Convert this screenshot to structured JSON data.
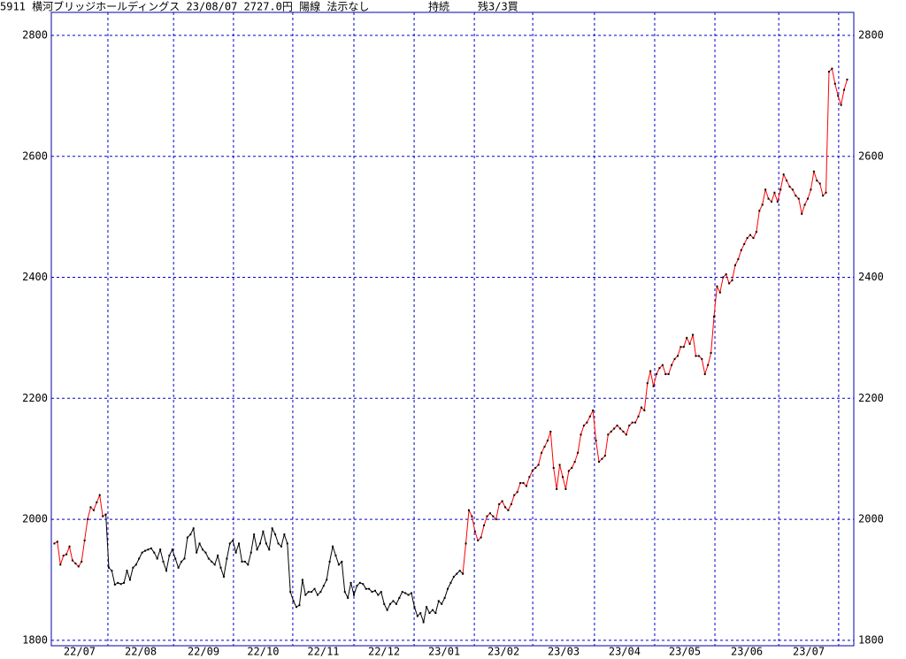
{
  "chart_data": {
    "type": "line",
    "title_parts": [
      "5911 横河ブリッジホールディングス 23/08/07 2727.0円 陽線 法示なし",
      "持続",
      "残3/3買"
    ],
    "x_labels": [
      "22/07",
      "22/08",
      "22/09",
      "22/10",
      "22/11",
      "22/12",
      "23/01",
      "23/02",
      "23/03",
      "23/04",
      "23/05",
      "23/06",
      "23/07"
    ],
    "xlim": [
      -1,
      264.2
    ],
    "xticks": [
      17.7,
      39.4,
      59.2,
      78.8,
      99,
      118.9,
      138.8,
      158.1,
      178.5,
      198.4,
      218.3,
      239.4,
      259.2
    ],
    "ylim": [
      1791,
      2838
    ],
    "yticks": [
      1800,
      2000,
      2200,
      2400,
      2600,
      2800
    ],
    "grid": true,
    "grid_color": "#0000cc",
    "frame_color": "#0000aa",
    "marker_color": "#000000",
    "series": [
      {
        "color": "#000000",
        "values": [
          null,
          null,
          null,
          null,
          null,
          null,
          null,
          null,
          null,
          null,
          null,
          null,
          null,
          null,
          null,
          null,
          null,
          2008,
          1920,
          1915,
          1892,
          1895,
          1893,
          1895,
          1915,
          1900,
          1920,
          1925,
          1935,
          1945,
          1948,
          1950,
          1952,
          1945,
          1935,
          1950,
          1930,
          1915,
          1940,
          1950,
          1935,
          1920,
          1930,
          1935,
          1970,
          1975,
          1985,
          1945,
          1960,
          1950,
          1945,
          1935,
          1930,
          1925,
          1940,
          1920,
          1905,
          1935,
          1960,
          1965,
          1945,
          1960,
          1930,
          1930,
          1925,
          1945,
          1975,
          1950,
          1960,
          1980,
          1960,
          1950,
          1985,
          1975,
          1960,
          1955,
          1975,
          1960,
          1880,
          1865,
          1855,
          1858,
          1900,
          1875,
          1880,
          1880,
          1885,
          1875,
          1880,
          1890,
          1900,
          1930,
          1955,
          1940,
          1925,
          1930,
          1880,
          1870,
          1895,
          1875,
          1890,
          1895,
          1893,
          1885,
          1885,
          1880,
          1882,
          1875,
          1880,
          1860,
          1850,
          1860,
          1865,
          1860,
          1870,
          1880,
          1878,
          1875,
          1878,
          1855,
          1840,
          1845,
          1830,
          1855,
          1845,
          1850,
          1845,
          1865,
          1860,
          1870,
          1885,
          1895,
          1905,
          1910,
          1915,
          1910,
          null,
          null,
          null,
          null,
          null,
          null,
          null,
          null,
          null,
          null,
          null,
          null,
          null,
          null,
          null,
          null,
          null,
          null,
          null,
          null,
          null,
          null,
          null,
          null,
          null,
          null,
          null,
          null,
          null,
          null,
          null,
          null,
          null,
          null,
          null,
          null,
          null,
          null,
          null,
          null,
          null,
          null,
          null,
          null,
          null,
          null,
          null,
          null,
          null,
          null,
          null,
          null,
          null,
          null,
          null,
          null,
          null,
          null,
          null,
          null,
          null,
          null,
          null,
          null,
          null,
          null,
          null,
          null,
          null,
          null,
          null,
          null,
          null,
          null,
          null,
          null,
          null,
          null,
          null,
          null,
          null,
          null,
          null,
          null,
          null,
          null,
          null,
          null,
          null,
          null,
          null,
          null,
          null,
          null,
          null,
          null,
          null,
          null,
          null,
          null,
          null,
          null,
          null,
          null,
          null,
          null,
          null,
          null,
          null,
          null,
          null,
          null,
          null,
          null,
          null,
          null,
          null,
          null,
          null,
          null,
          null,
          null,
          null,
          null,
          null,
          null,
          null
        ]
      },
      {
        "color": "#ff0000",
        "values": [
          1960,
          1963,
          1925,
          1940,
          1942,
          1955,
          1932,
          1927,
          1922,
          1930,
          1965,
          2000,
          2020,
          2015,
          2028,
          2040,
          2005,
          2008,
          null,
          null,
          null,
          null,
          null,
          null,
          null,
          null,
          null,
          null,
          null,
          null,
          null,
          null,
          null,
          null,
          null,
          null,
          null,
          null,
          null,
          null,
          null,
          null,
          null,
          null,
          null,
          null,
          null,
          null,
          null,
          null,
          null,
          null,
          null,
          null,
          null,
          null,
          null,
          null,
          null,
          null,
          null,
          null,
          null,
          null,
          null,
          null,
          null,
          null,
          null,
          null,
          null,
          null,
          null,
          null,
          null,
          null,
          null,
          null,
          null,
          null,
          null,
          null,
          null,
          null,
          null,
          null,
          null,
          null,
          null,
          null,
          null,
          null,
          null,
          null,
          null,
          null,
          null,
          null,
          null,
          null,
          null,
          null,
          null,
          null,
          null,
          null,
          null,
          null,
          null,
          null,
          null,
          null,
          null,
          null,
          null,
          null,
          null,
          null,
          null,
          null,
          null,
          null,
          null,
          null,
          null,
          null,
          null,
          null,
          null,
          null,
          null,
          null,
          null,
          null,
          null,
          1910,
          1960,
          2015,
          2005,
          1980,
          1965,
          1970,
          1990,
          2005,
          2010,
          2005,
          2000,
          2025,
          2030,
          2020,
          2015,
          2025,
          2040,
          2045,
          2060,
          2060,
          2055,
          2070,
          2080,
          2085,
          2090,
          2110,
          2120,
          2130,
          2145,
          2085,
          2050,
          2090,
          2070,
          2050,
          2080,
          2085,
          2095,
          2110,
          2140,
          2155,
          2160,
          2170,
          2180,
          2130,
          2095,
          2100,
          2105,
          2140,
          2145,
          2150,
          2155,
          2150,
          2145,
          2140,
          2155,
          2160,
          2160,
          2170,
          2185,
          2180,
          2225,
          2245,
          2220,
          2240,
          2250,
          2255,
          2240,
          2240,
          2255,
          2265,
          2270,
          2285,
          2285,
          2300,
          2290,
          2305,
          2270,
          2270,
          2265,
          2240,
          2255,
          2275,
          2335,
          2385,
          2375,
          2400,
          2405,
          2390,
          2395,
          2420,
          2430,
          2445,
          2455,
          2465,
          2470,
          2465,
          2475,
          2510,
          2520,
          2545,
          2530,
          2525,
          2540,
          2525,
          2545,
          2570,
          2560,
          2550,
          2545,
          2535,
          2530,
          2505,
          2520,
          2530,
          2545,
          2575,
          2560,
          2555,
          2535,
          2540,
          2740,
          2745,
          2720,
          2700,
          2685,
          2710,
          2727
        ]
      }
    ]
  }
}
